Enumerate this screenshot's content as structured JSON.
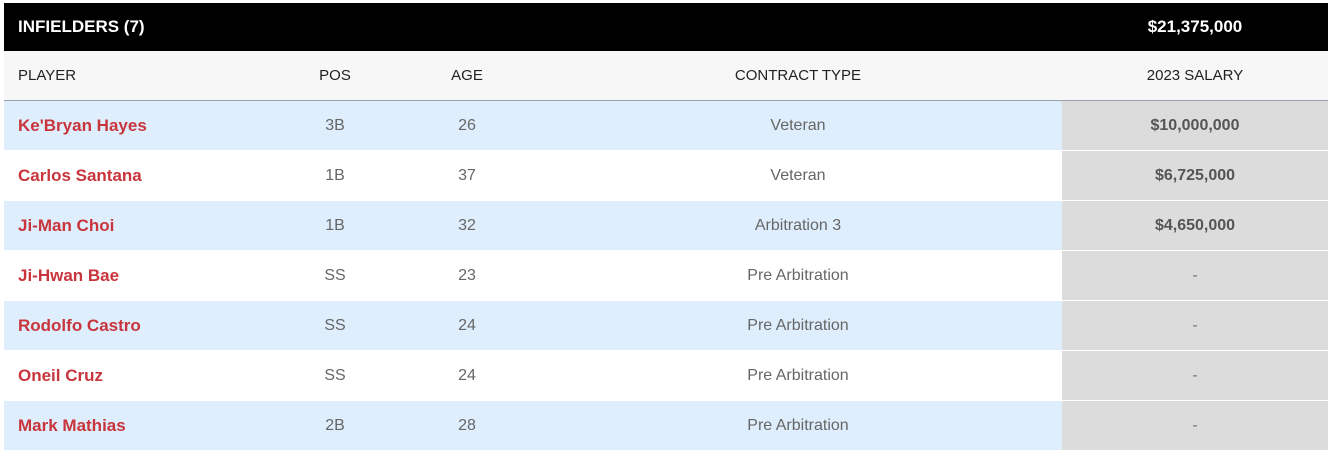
{
  "group": {
    "title": "INFIELDERS (7)",
    "total": "$21,375,000"
  },
  "columns": {
    "player": "PLAYER",
    "pos": "POS",
    "age": "AGE",
    "contract": "CONTRACT TYPE",
    "salary": "2023 SALARY"
  },
  "rows": [
    {
      "player": "Ke'Bryan Hayes",
      "pos": "3B",
      "age": "26",
      "contract": "Veteran",
      "salary": "$10,000,000"
    },
    {
      "player": "Carlos Santana",
      "pos": "1B",
      "age": "37",
      "contract": "Veteran",
      "salary": "$6,725,000"
    },
    {
      "player": "Ji-Man Choi",
      "pos": "1B",
      "age": "32",
      "contract": "Arbitration 3",
      "salary": "$4,650,000"
    },
    {
      "player": "Ji-Hwan Bae",
      "pos": "SS",
      "age": "23",
      "contract": "Pre Arbitration",
      "salary": "-"
    },
    {
      "player": "Rodolfo Castro",
      "pos": "SS",
      "age": "24",
      "contract": "Pre Arbitration",
      "salary": "-"
    },
    {
      "player": "Oneil Cruz",
      "pos": "SS",
      "age": "24",
      "contract": "Pre Arbitration",
      "salary": "-"
    },
    {
      "player": "Mark Mathias",
      "pos": "2B",
      "age": "28",
      "contract": "Pre Arbitration",
      "salary": "-"
    }
  ]
}
